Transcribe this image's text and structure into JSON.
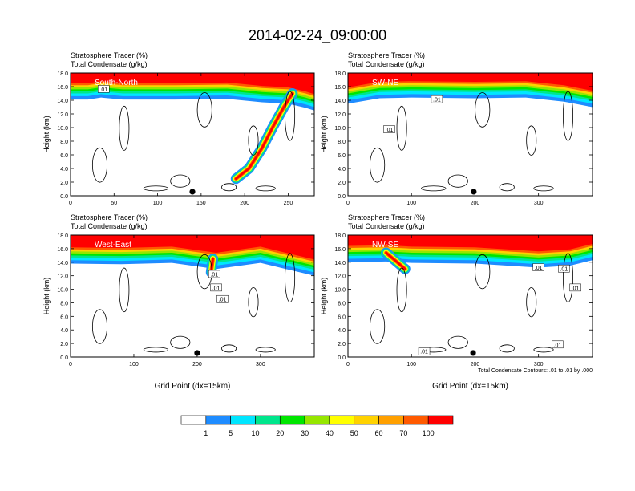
{
  "figure": {
    "title": "2014-02-24_09:00:00",
    "contour_note": "Total Condensate Contours: .01 to .01 by .000"
  },
  "colors": {
    "levels": [
      "#ffffff",
      "#1e8cff",
      "#00e6ff",
      "#00e68c",
      "#00e600",
      "#96e600",
      "#ffff00",
      "#ffd200",
      "#ffa000",
      "#ff5a00",
      "#ff0000"
    ],
    "contour": "#000000"
  },
  "colorbar": {
    "labels": [
      "1",
      "5",
      "10",
      "20",
      "30",
      "40",
      "50",
      "60",
      "70",
      "100"
    ]
  },
  "chart_data": [
    {
      "type": "heatmap",
      "label": "South-North",
      "title_line1": "Stratosphere Tracer   (%)",
      "title_line2": "Total Condensate   (g/kg)",
      "xlabel": "",
      "ylabel": "Height (km)",
      "xlim": [
        0,
        280
      ],
      "ylim": [
        0,
        18
      ],
      "xticks": [
        "0",
        "50",
        "100",
        "150",
        "200",
        "250"
      ],
      "xtick_values": [
        0,
        50,
        100,
        150,
        200,
        250
      ],
      "yticks": [
        "0.0",
        "2.0",
        "4.0",
        "6.0",
        "8.0",
        "10.0",
        "12.0",
        "14.0",
        "16.0",
        "18.0"
      ],
      "marker_x": 140,
      "contour_labels": [
        {
          "text": ".01",
          "x": 38,
          "y": 15.6
        }
      ],
      "tracer_top": [
        [
          0,
          15.6
        ],
        [
          20,
          15.6
        ],
        [
          35,
          15.9
        ],
        [
          60,
          15.6
        ],
        [
          120,
          15.6
        ],
        [
          180,
          15.7
        ],
        [
          220,
          15.2
        ],
        [
          250,
          15.0
        ],
        [
          270,
          14.4
        ],
        [
          280,
          14.0
        ]
      ],
      "fold": [
        [
          255,
          15.0
        ],
        [
          245,
          13.0
        ],
        [
          232,
          10.0
        ],
        [
          220,
          7.0
        ],
        [
          205,
          4.0
        ],
        [
          190,
          2.5
        ]
      ]
    },
    {
      "type": "heatmap",
      "label": "SW-NE",
      "title_line1": "Stratosphere Tracer   (%)",
      "title_line2": "Total Condensate   (g/kg)",
      "xlabel": "",
      "ylabel": "Height (km)",
      "xlim": [
        0,
        385
      ],
      "ylim": [
        0,
        18
      ],
      "xticks": [
        "0",
        "100",
        "200",
        "300"
      ],
      "xtick_values": [
        0,
        100,
        200,
        300
      ],
      "yticks": [
        "0.0",
        "2.0",
        "4.0",
        "6.0",
        "8.0",
        "10.0",
        "12.0",
        "14.0",
        "16.0",
        "18.0"
      ],
      "marker_x": 198,
      "contour_labels": [
        {
          "text": ".01",
          "x": 140,
          "y": 14.1
        },
        {
          "text": ".01",
          "x": 65,
          "y": 9.7
        }
      ],
      "tracer_top": [
        [
          0,
          15.0
        ],
        [
          50,
          15.8
        ],
        [
          100,
          15.9
        ],
        [
          200,
          15.8
        ],
        [
          280,
          15.9
        ],
        [
          340,
          15.3
        ],
        [
          385,
          14.5
        ]
      ],
      "fold": []
    },
    {
      "type": "heatmap",
      "label": "West-East",
      "title_line1": "Stratosphere Tracer   (%)",
      "title_line2": "Total Condensate   (g/kg)",
      "xlabel": "Grid Point (dx=15km)",
      "ylabel": "Height (km)",
      "xlim": [
        0,
        385
      ],
      "ylim": [
        0,
        18
      ],
      "xticks": [
        "0",
        "100",
        "200",
        "300"
      ],
      "xtick_values": [
        0,
        100,
        200,
        300
      ],
      "yticks": [
        "0.0",
        "2.0",
        "4.0",
        "6.0",
        "8.0",
        "10.0",
        "12.0",
        "14.0",
        "16.0",
        "18.0"
      ],
      "marker_x": 200,
      "contour_labels": [
        {
          "text": ".01",
          "x": 227,
          "y": 12.2
        },
        {
          "text": ".01",
          "x": 230,
          "y": 10.2
        },
        {
          "text": ".01",
          "x": 240,
          "y": 8.5
        }
      ],
      "tracer_top": [
        [
          0,
          15.3
        ],
        [
          80,
          15.2
        ],
        [
          160,
          15.4
        ],
        [
          230,
          14.5
        ],
        [
          300,
          15.4
        ],
        [
          340,
          14.5
        ],
        [
          385,
          13.5
        ]
      ],
      "fold": [
        [
          225,
          14.5
        ],
        [
          222,
          12.5
        ]
      ]
    },
    {
      "type": "heatmap",
      "label": "NW-SE",
      "title_line1": "Stratosphere Tracer   (%)",
      "title_line2": "Total Condensate   (g/kg)",
      "xlabel": "Grid Point (dx=15km)",
      "ylabel": "Height (km)",
      "xlim": [
        0,
        385
      ],
      "ylim": [
        0,
        18
      ],
      "xticks": [
        "0",
        "100",
        "200",
        "300"
      ],
      "xtick_values": [
        0,
        100,
        200,
        300
      ],
      "yticks": [
        "0.0",
        "2.0",
        "4.0",
        "6.0",
        "8.0",
        "10.0",
        "12.0",
        "14.0",
        "16.0",
        "18.0"
      ],
      "marker_x": 197,
      "contour_labels": [
        {
          "text": ".01",
          "x": 300,
          "y": 13.2
        },
        {
          "text": ".01",
          "x": 340,
          "y": 13.0
        },
        {
          "text": ".01",
          "x": 358,
          "y": 10.2
        },
        {
          "text": ".01",
          "x": 120,
          "y": 0.8
        },
        {
          "text": ".01",
          "x": 330,
          "y": 1.8
        }
      ],
      "tracer_top": [
        [
          0,
          15.5
        ],
        [
          60,
          15.6
        ],
        [
          100,
          15.4
        ],
        [
          200,
          15.3
        ],
        [
          300,
          14.7
        ],
        [
          350,
          15.0
        ],
        [
          385,
          15.8
        ]
      ],
      "fold": [
        [
          60,
          15.4
        ],
        [
          90,
          13.0
        ]
      ]
    }
  ]
}
